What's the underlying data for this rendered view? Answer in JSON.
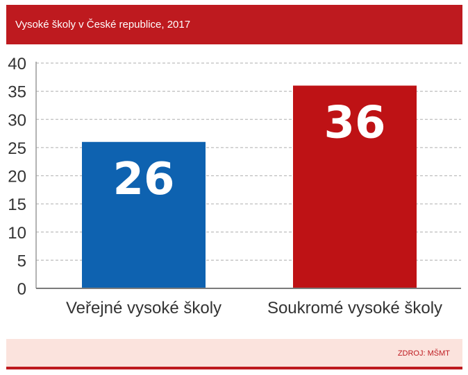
{
  "header": {
    "title": "Vysoké školy v České republice, 2017"
  },
  "footer": {
    "source": "ZDROJ: MŠMT"
  },
  "chart_data": {
    "type": "bar",
    "categories": [
      "Veřejné vysoké školy",
      "Soukromé vysoké školy"
    ],
    "values": [
      26,
      36
    ],
    "data_labels": [
      "26",
      "36"
    ],
    "colors": [
      "#0e62b0",
      "#be1215"
    ],
    "ylim": [
      0,
      40
    ],
    "yticks": [
      0,
      5,
      10,
      15,
      20,
      25,
      30,
      35,
      40
    ],
    "grid": true,
    "xlabel": "",
    "ylabel": ""
  }
}
